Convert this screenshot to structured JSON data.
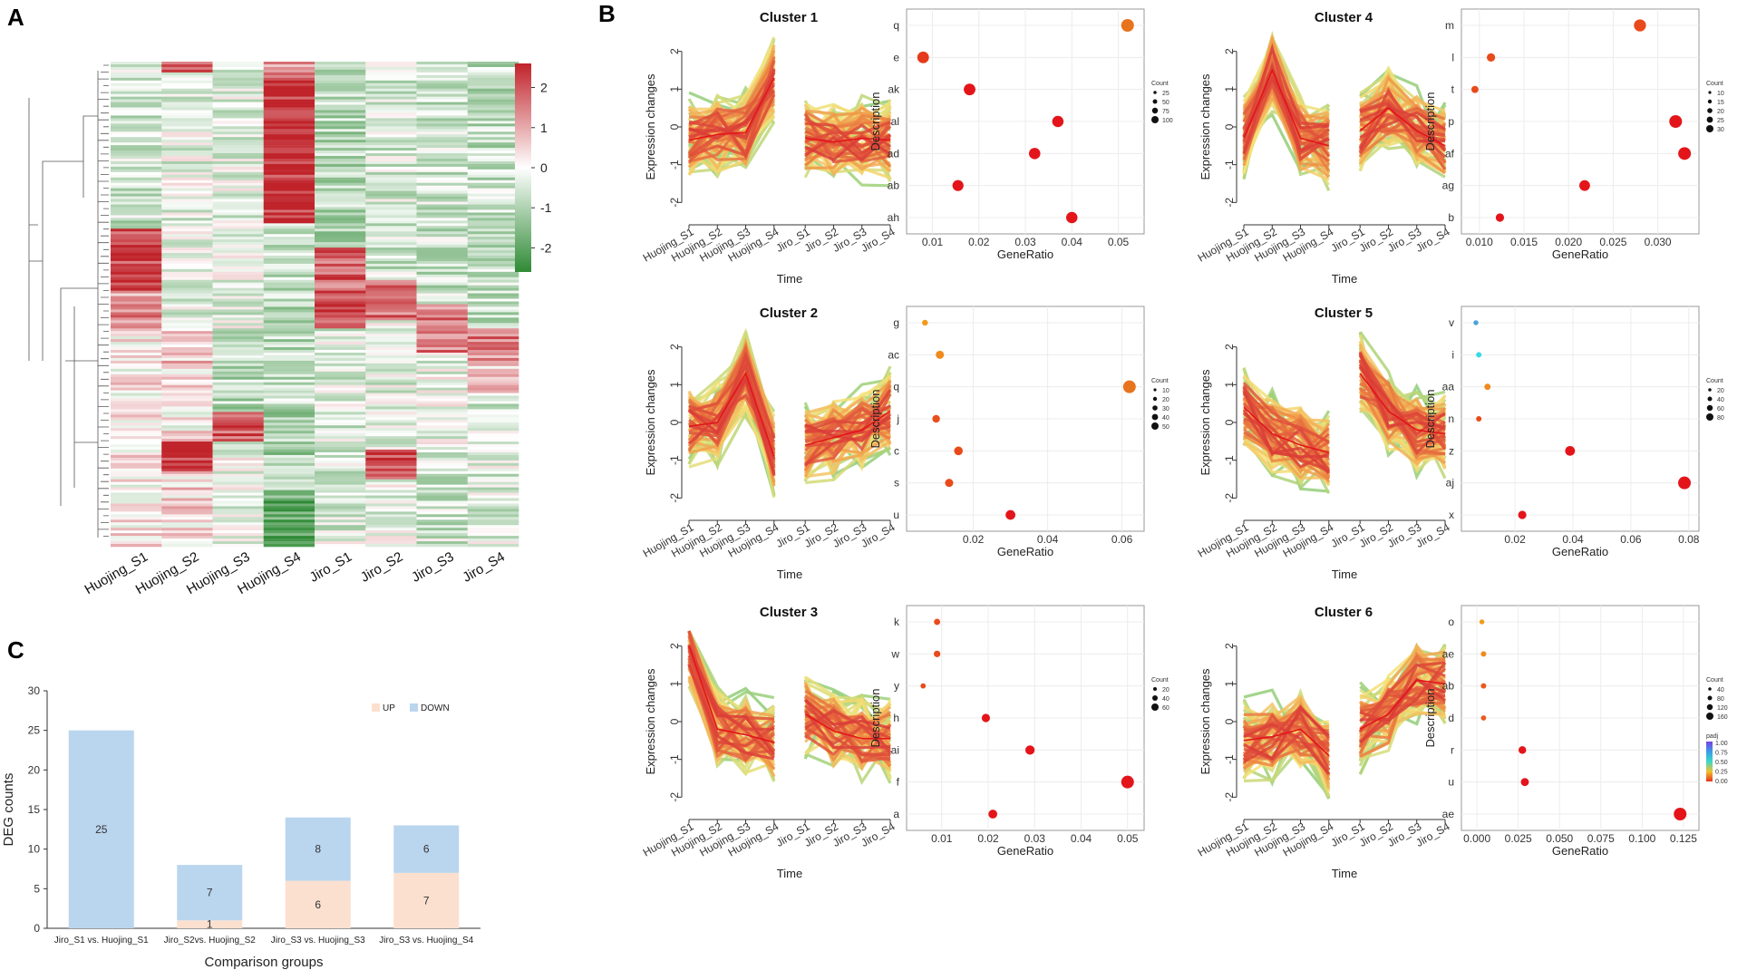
{
  "panels": {
    "a": "A",
    "b": "B",
    "c": "C"
  },
  "heatmap": {
    "samples": [
      "Huojing_S1",
      "Huojing_S2",
      "Huojing_S3",
      "Huojing_S4",
      "Jiro_S1",
      "Jiro_S2",
      "Jiro_S3",
      "Jiro_S4"
    ],
    "scale_ticks": [
      "2",
      "1",
      "0",
      "-1",
      "-2"
    ],
    "scale_values": [
      2,
      1,
      0,
      -1,
      -2
    ],
    "colors": {
      "high": "#c0232a",
      "mid": "#ffffff",
      "low": "#2f8a35"
    }
  },
  "clusters": [
    {
      "title": "Cluster 1",
      "line": {
        "y_ticks": [
          "2",
          "1",
          "0",
          "-1",
          "-2"
        ],
        "x_ticks": [
          "Huojing_S1",
          "Huojing_S2",
          "Huojing_S3",
          "Huojing_S4",
          "Jiro_S1",
          "Jiro_S2",
          "Jiro_S3",
          "Jiro_S4"
        ],
        "xlabel": "Time",
        "ylabel": "Expression changes",
        "mean": [
          -0.35,
          -0.2,
          -0.15,
          1.3,
          -0.3,
          -0.4,
          -0.3,
          -0.35
        ]
      },
      "dot": {
        "xlabel": "GeneRatio",
        "ylabel": "Description",
        "x_ticks": [
          "0.010",
          "0.015",
          "0.020",
          "0.025",
          "0.030",
          "0.035",
          "0.040",
          "0.045",
          "0.050"
        ],
        "display_ticks": [
          "0.01",
          "0.02",
          "0.03",
          "0.04",
          "0.05"
        ],
        "tick_values": [
          0.01,
          0.02,
          0.03,
          0.04,
          0.05
        ],
        "xlim": [
          0.006,
          0.054
        ],
        "categories": [
          "q",
          "e",
          "ak",
          "al",
          "ad",
          "ab",
          "ah"
        ],
        "values": [
          0.052,
          0.008,
          0.018,
          0.037,
          0.032,
          0.0155,
          0.04
        ],
        "counts": [
          100,
          80,
          80,
          75,
          75,
          70,
          75
        ],
        "colors": [
          "#e8731d",
          "#e63a1c",
          "#e3151a",
          "#e3151a",
          "#e3151a",
          "#e3151a",
          "#e3151a"
        ],
        "legend_title": "Count",
        "legend": [
          "25",
          "50",
          "75",
          "100"
        ]
      }
    },
    {
      "title": "Cluster 2",
      "line": {
        "y_ticks": [
          "2",
          "1",
          "0",
          "-1",
          "-2"
        ],
        "x_ticks": [
          "Huojing_S1",
          "Huojing_S2",
          "Huojing_S3",
          "Huojing_S4",
          "Jiro_S1",
          "Jiro_S2",
          "Jiro_S3",
          "Jiro_S4"
        ],
        "xlabel": "Time",
        "ylabel": "Expression changes",
        "mean": [
          -0.1,
          0.0,
          1.3,
          -0.9,
          -0.6,
          -0.4,
          -0.2,
          0.3
        ]
      },
      "dot": {
        "xlabel": "GeneRatio",
        "ylabel": "Description",
        "display_ticks": [
          "0.02",
          "0.04",
          "0.06"
        ],
        "tick_values": [
          0.02,
          0.04,
          0.06
        ],
        "xlim": [
          0.004,
          0.064
        ],
        "categories": [
          "g",
          "ac",
          "q",
          "j",
          "c",
          "s",
          "u"
        ],
        "values": [
          0.007,
          0.011,
          0.062,
          0.01,
          0.016,
          0.0135,
          0.03
        ],
        "counts": [
          5,
          15,
          50,
          12,
          18,
          15,
          25
        ],
        "colors": [
          "#f39a1e",
          "#f08a1c",
          "#e8731d",
          "#e94f1c",
          "#ea4a1b",
          "#e94a1b",
          "#e3151a"
        ],
        "legend_title": "Count",
        "legend": [
          "10",
          "20",
          "30",
          "40",
          "50"
        ]
      }
    },
    {
      "title": "Cluster 3",
      "line": {
        "y_ticks": [
          "2",
          "1",
          "0",
          "-1",
          "-2"
        ],
        "x_ticks": [
          "Huojing_S1",
          "Huojing_S2",
          "Huojing_S3",
          "Huojing_S4",
          "Jiro_S1",
          "Jiro_S2",
          "Jiro_S3",
          "Jiro_S4"
        ],
        "xlabel": "Time",
        "ylabel": "Expression changes",
        "mean": [
          2.0,
          -0.2,
          -0.35,
          -0.55,
          0.2,
          -0.25,
          -0.45,
          -0.45
        ]
      },
      "dot": {
        "xlabel": "GeneRatio",
        "ylabel": "Description",
        "display_ticks": [
          "0.01",
          "0.02",
          "0.03",
          "0.04",
          "0.05"
        ],
        "tick_values": [
          0.01,
          0.02,
          0.03,
          0.04,
          0.05
        ],
        "xlim": [
          0.004,
          0.052
        ],
        "categories": [
          "k",
          "w",
          "y",
          "h",
          "ai",
          "f",
          "a"
        ],
        "values": [
          0.009,
          0.009,
          0.006,
          0.0195,
          0.029,
          0.05,
          0.021
        ],
        "counts": [
          10,
          12,
          5,
          25,
          35,
          80,
          30
        ],
        "colors": [
          "#e94a1b",
          "#e94a1b",
          "#e94a1b",
          "#e3151a",
          "#e3151a",
          "#e3151a",
          "#e3151a"
        ],
        "legend_title": "Count",
        "legend": [
          "20",
          "40",
          "60"
        ]
      }
    },
    {
      "title": "Cluster 4",
      "line": {
        "y_ticks": [
          "2",
          "1",
          "0",
          "-1",
          "-2"
        ],
        "x_ticks": [
          "Huojing_S1",
          "Huojing_S2",
          "Huojing_S3",
          "Huojing_S4",
          "Jiro_S1",
          "Jiro_S2",
          "Jiro_S3",
          "Jiro_S4"
        ],
        "xlabel": "Time",
        "ylabel": "Expression changes",
        "mean": [
          -0.3,
          1.5,
          -0.3,
          -0.5,
          -0.1,
          0.5,
          -0.1,
          -0.5
        ]
      },
      "dot": {
        "xlabel": "GeneRatio",
        "ylabel": "Description",
        "display_ticks": [
          "0.010",
          "0.015",
          "0.020",
          "0.025",
          "0.030"
        ],
        "tick_values": [
          0.01,
          0.015,
          0.02,
          0.025,
          0.03
        ],
        "xlim": [
          0.0088,
          0.0338
        ],
        "categories": [
          "m",
          "l",
          "t",
          "p",
          "af",
          "ag",
          "b"
        ],
        "values": [
          0.028,
          0.0113,
          0.0095,
          0.032,
          0.033,
          0.0218,
          0.0123
        ],
        "counts": [
          22,
          8,
          5,
          25,
          25,
          16,
          8
        ],
        "colors": [
          "#e94a1b",
          "#e94a1b",
          "#e94a1b",
          "#e3151a",
          "#e3151a",
          "#e3151a",
          "#e3151a"
        ],
        "legend_title": "Count",
        "legend": [
          "10",
          "15",
          "20",
          "25",
          "30"
        ]
      }
    },
    {
      "title": "Cluster 5",
      "line": {
        "y_ticks": [
          "2",
          "1",
          "0",
          "-1",
          "-2"
        ],
        "x_ticks": [
          "Huojing_S1",
          "Huojing_S2",
          "Huojing_S3",
          "Huojing_S4",
          "Jiro_S1",
          "Jiro_S2",
          "Jiro_S3",
          "Jiro_S4"
        ],
        "xlabel": "Time",
        "ylabel": "Expression changes",
        "mean": [
          0.4,
          -0.3,
          -0.6,
          -0.8,
          1.3,
          0.3,
          -0.2,
          -0.3
        ]
      },
      "dot": {
        "xlabel": "GeneRatio",
        "ylabel": "Description",
        "display_ticks": [
          "0.02",
          "0.04",
          "0.06",
          "0.08"
        ],
        "tick_values": [
          0.02,
          0.04,
          0.06,
          0.08
        ],
        "xlim": [
          0.004,
          0.081
        ],
        "categories": [
          "v",
          "i",
          "aa",
          "n",
          "z",
          "aj",
          "x"
        ],
        "values": [
          0.0065,
          0.0075,
          0.0105,
          0.0075,
          0.039,
          0.0785,
          0.0225
        ],
        "counts": [
          4,
          6,
          10,
          6,
          40,
          80,
          25
        ],
        "colors": [
          "#4aa3d8",
          "#3ad9e6",
          "#f08a1c",
          "#e94a1b",
          "#e3151a",
          "#e3151a",
          "#e3151a"
        ],
        "legend_title": "Count",
        "legend": [
          "20",
          "40",
          "60",
          "80"
        ]
      }
    },
    {
      "title": "Cluster 6",
      "line": {
        "y_ticks": [
          "2",
          "1",
          "0",
          "-1",
          "-2"
        ],
        "x_ticks": [
          "Huojing_S1",
          "Huojing_S2",
          "Huojing_S3",
          "Huojing_S4",
          "Jiro_S1",
          "Jiro_S2",
          "Jiro_S3",
          "Jiro_S4"
        ],
        "xlabel": "Time",
        "ylabel": "Expression changes",
        "mean": [
          -0.5,
          -0.4,
          -0.2,
          -0.9,
          -0.2,
          0.2,
          1.1,
          1.0
        ]
      },
      "dot": {
        "xlabel": "GeneRatio",
        "ylabel": "Description",
        "display_ticks": [
          "0.000",
          "0.025",
          "0.050",
          "0.075",
          "0.100",
          "0.125"
        ],
        "tick_values": [
          0.0,
          0.025,
          0.05,
          0.075,
          0.1,
          0.125
        ],
        "xlim": [
          -0.005,
          0.13
        ],
        "categories": [
          "o",
          "ae",
          "ab",
          "d",
          "r",
          "u",
          "ae"
        ],
        "values": [
          0.003,
          0.004,
          0.004,
          0.004,
          0.0275,
          0.029,
          0.123
        ],
        "counts": [
          8,
          12,
          12,
          10,
          40,
          45,
          160
        ],
        "colors": [
          "#f39a1e",
          "#f08a1c",
          "#ea5a1b",
          "#ea5a1b",
          "#e3151a",
          "#e3151a",
          "#e3151a"
        ],
        "legend_title": "Count",
        "legend": [
          "40",
          "80",
          "120",
          "160"
        ],
        "padj_title": "padj",
        "padj_ticks": [
          "1.00",
          "0.75",
          "0.50",
          "0.25",
          "0.00"
        ]
      }
    }
  ],
  "chart_data": {
    "type": "bar",
    "title": "",
    "xlabel": "Comparison groups",
    "ylabel": "DEG counts",
    "categories": [
      "Jiro_S1 vs. Huojing_S1",
      "Jiro_S2vs. Huojing_S2",
      "Jiro_S3 vs. Huojing_S3",
      "Jiro_S3 vs. Huojing_S4"
    ],
    "series": [
      {
        "name": "UP",
        "color": "#fbe0cf",
        "values": [
          0,
          1,
          6,
          7
        ]
      },
      {
        "name": "DOWN",
        "color": "#bad5ee",
        "values": [
          25,
          7,
          8,
          6
        ]
      }
    ],
    "labels": {
      "UP": [
        "",
        "1",
        "6",
        "7"
      ],
      "DOWN": [
        "25",
        "7",
        "8",
        "6"
      ]
    },
    "y_ticks": [
      "0",
      "5",
      "10",
      "15",
      "20",
      "25",
      "30"
    ],
    "ylim": [
      0,
      30
    ],
    "legend_position": "top-right"
  }
}
